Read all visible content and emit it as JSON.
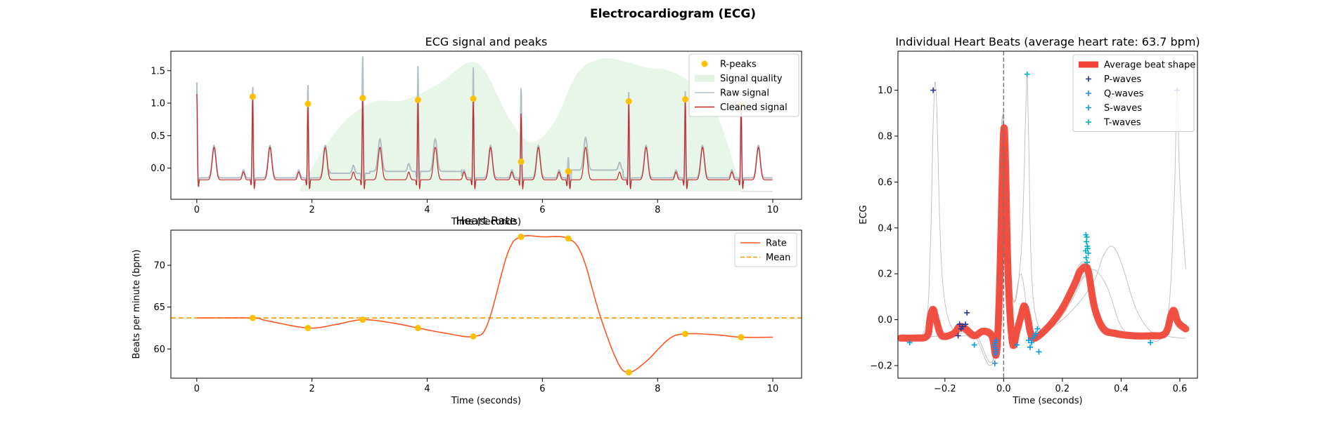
{
  "figure": {
    "title": "Electrocardiogram (ECG)"
  },
  "chart_data": [
    {
      "id": "ecg",
      "type": "line",
      "title": "ECG signal and peaks",
      "xlabel": "Time (seconds)",
      "ylabel": "",
      "xlim": [
        -0.45,
        10.5
      ],
      "ylim": [
        -0.48,
        1.8
      ],
      "xticks": [
        0,
        2,
        4,
        6,
        8,
        10
      ],
      "yticks": [
        0.0,
        0.5,
        1.0,
        1.5
      ],
      "grid": false,
      "legend_position": "top-right",
      "legend": [
        {
          "label": "R-peaks",
          "kind": "dot",
          "color": "#FFC107"
        },
        {
          "label": "Signal quality",
          "kind": "area",
          "color": "#E3F2E3"
        },
        {
          "label": "Raw signal",
          "kind": "line",
          "color": "#B0BEC5"
        },
        {
          "label": "Cleaned signal",
          "kind": "line",
          "color": "#C62828"
        }
      ],
      "r_peaks": {
        "x": [
          0.97,
          1.93,
          2.88,
          3.84,
          4.8,
          5.63,
          6.45,
          7.5,
          8.48,
          9.45
        ],
        "y": [
          1.1,
          0.99,
          1.08,
          1.05,
          1.07,
          0.1,
          -0.05,
          1.03,
          1.06,
          0.97
        ]
      },
      "quality": {
        "x": [
          1.8,
          2.4,
          3.0,
          3.6,
          4.2,
          4.7,
          5.0,
          5.4,
          5.8,
          6.2,
          6.6,
          7.0,
          7.4,
          7.8,
          8.2,
          8.6,
          9.0,
          9.45
        ],
        "y": [
          -0.3,
          0.55,
          1.0,
          1.05,
          1.3,
          1.62,
          1.5,
          0.8,
          0.4,
          0.7,
          1.45,
          1.68,
          1.65,
          1.55,
          1.5,
          1.3,
          0.9,
          -0.3
        ]
      },
      "raw_r_peaks": {
        "x": [
          0.0,
          0.97,
          1.93,
          2.88,
          3.84,
          4.8,
          5.63,
          6.45,
          7.5,
          8.48,
          9.45
        ],
        "y": [
          1.35,
          1.32,
          1.35,
          1.68,
          1.5,
          1.58,
          1.3,
          0.2,
          1.2,
          1.25,
          1.1
        ]
      },
      "clean_r_peaks": {
        "x": [
          0.0,
          0.97,
          1.93,
          2.88,
          3.84,
          4.8,
          5.63,
          6.45,
          7.5,
          8.48,
          9.45
        ],
        "y": [
          0.82,
          1.12,
          1.0,
          1.1,
          1.06,
          1.08,
          0.9,
          0.0,
          1.05,
          1.08,
          0.98
        ]
      }
    },
    {
      "id": "heart-rate",
      "type": "line",
      "title": "Heart Rate",
      "xlabel": "Time (seconds)",
      "ylabel": "Beats per minute (bpm)",
      "xlim": [
        -0.45,
        10.5
      ],
      "ylim": [
        56.5,
        74.2
      ],
      "xticks": [
        0,
        2,
        4,
        6,
        8,
        10
      ],
      "yticks": [
        60,
        65,
        70
      ],
      "grid": false,
      "legend_position": "top-right",
      "legend": [
        {
          "label": "Rate",
          "kind": "line",
          "color": "#FF5722"
        },
        {
          "label": "Mean",
          "kind": "dashed",
          "color": "#FF9800"
        }
      ],
      "mean": 63.7,
      "rate_curve": {
        "x": [
          0,
          0.97,
          1.2,
          1.93,
          2.4,
          2.88,
          3.4,
          3.84,
          4.3,
          4.8,
          5.05,
          5.4,
          5.63,
          6.0,
          6.45,
          6.7,
          7.0,
          7.3,
          7.5,
          7.8,
          8.2,
          8.48,
          9.0,
          9.45,
          10.0
        ],
        "y": [
          63.7,
          63.7,
          63.4,
          62.5,
          62.9,
          63.5,
          63.1,
          62.5,
          61.9,
          61.5,
          63.0,
          71.5,
          73.4,
          73.4,
          73.2,
          71.0,
          64.0,
          58.5,
          57.2,
          58.5,
          61.2,
          61.8,
          61.7,
          61.4,
          61.4
        ]
      },
      "beats": {
        "x": [
          0.97,
          1.93,
          2.88,
          3.84,
          4.8,
          5.63,
          6.45,
          7.5,
          8.48,
          9.45
        ],
        "y": [
          63.7,
          62.5,
          63.5,
          62.5,
          61.5,
          73.4,
          73.2,
          57.2,
          61.8,
          61.4
        ]
      }
    },
    {
      "id": "heartbeats",
      "type": "line",
      "title": "Individual Heart Beats (average heart rate: 63.7 bpm)",
      "xlabel": "Time (seconds)",
      "ylabel": "ECG",
      "xlim": [
        -0.36,
        0.66
      ],
      "ylim": [
        -0.255,
        1.17
      ],
      "xticks": [
        -0.2,
        0.0,
        0.2,
        0.4,
        0.6
      ],
      "yticks": [
        -0.2,
        0.0,
        0.2,
        0.4,
        0.6,
        0.8,
        1.0
      ],
      "grid": false,
      "legend_position": "top-right",
      "legend": [
        {
          "label": "Average beat shape",
          "kind": "thick",
          "color": "#F44336"
        },
        {
          "label": "P-waves",
          "kind": "plus",
          "color": "#283593"
        },
        {
          "label": "Q-waves",
          "kind": "plus",
          "color": "#1E88E5"
        },
        {
          "label": "S-waves",
          "kind": "plus",
          "color": "#039BE5"
        },
        {
          "label": "T-waves",
          "kind": "plus",
          "color": "#00ACC1"
        }
      ],
      "average_beat": {
        "x": [
          -0.35,
          -0.3,
          -0.26,
          -0.25,
          -0.24,
          -0.23,
          -0.21,
          -0.17,
          -0.15,
          -0.13,
          -0.1,
          -0.07,
          -0.04,
          -0.025,
          -0.015,
          -0.005,
          0.0,
          0.005,
          0.015,
          0.03,
          0.045,
          0.06,
          0.07,
          0.08,
          0.09,
          0.1,
          0.12,
          0.16,
          0.2,
          0.24,
          0.26,
          0.28,
          0.29,
          0.31,
          0.34,
          0.38,
          0.44,
          0.5,
          0.55,
          0.57,
          0.58,
          0.59,
          0.6,
          0.62
        ],
        "y": [
          -0.08,
          -0.08,
          -0.07,
          0.01,
          0.045,
          0.0,
          -0.07,
          -0.06,
          -0.03,
          -0.04,
          -0.07,
          -0.05,
          -0.07,
          -0.15,
          0.1,
          0.6,
          0.82,
          0.75,
          0.2,
          -0.1,
          -0.05,
          0.02,
          0.06,
          0.02,
          -0.05,
          -0.08,
          -0.07,
          -0.02,
          0.05,
          0.15,
          0.21,
          0.23,
          0.2,
          0.05,
          -0.04,
          -0.06,
          -0.07,
          -0.07,
          -0.06,
          0.02,
          0.04,
          0.0,
          -0.02,
          -0.04
        ]
      },
      "p_waves": {
        "x": [
          -0.24,
          -0.15,
          -0.14,
          -0.13,
          -0.145,
          -0.125,
          -0.155,
          0.59
        ],
        "y": [
          1.0,
          -0.02,
          -0.03,
          -0.02,
          -0.04,
          0.03,
          -0.07,
          1.0
        ]
      },
      "q_waves": {
        "x": [
          -0.03,
          -0.028,
          -0.026,
          -0.031,
          -0.025,
          -0.027,
          -0.03,
          -0.028
        ],
        "y": [
          -0.19,
          -0.15,
          -0.13,
          -0.11,
          -0.09,
          -0.14,
          -0.12,
          -0.1
        ]
      },
      "s_waves": {
        "x": [
          0.045,
          0.09,
          0.1,
          0.11,
          0.12,
          0.095,
          0.105,
          0.115,
          0.085,
          -0.1,
          0.5,
          -0.32
        ],
        "y": [
          -0.11,
          -0.12,
          -0.08,
          -0.06,
          -0.14,
          -0.1,
          -0.07,
          -0.04,
          -0.09,
          -0.11,
          -0.1,
          -0.1
        ]
      },
      "t_waves": {
        "x": [
          0.08,
          0.28,
          0.282,
          0.285,
          0.279,
          0.288,
          0.281,
          0.284,
          0.286,
          0.283
        ],
        "y": [
          1.07,
          0.37,
          0.34,
          0.32,
          0.3,
          0.29,
          0.27,
          0.25,
          0.31,
          0.36
        ]
      }
    }
  ]
}
